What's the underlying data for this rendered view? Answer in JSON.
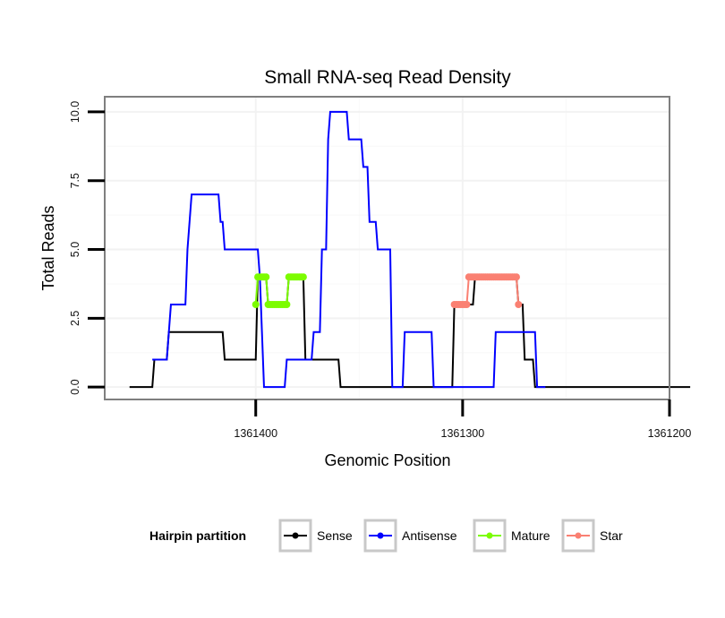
{
  "chart_data": {
    "type": "line",
    "title": "Small RNA-seq Read Density",
    "xlabel": "Genomic Position",
    "ylabel": "Total Reads",
    "x_reversed": true,
    "xlim": [
      1361473,
      1361200
    ],
    "ylim": [
      -0.45,
      10.55
    ],
    "xticks": [
      1361400,
      1361300,
      1361200
    ],
    "xtick_labels": [
      "1361400",
      "1361300",
      "1361200"
    ],
    "yticks": [
      0,
      2.5,
      5,
      7.5,
      10
    ],
    "ytick_labels": [
      "0.0",
      "2.5",
      "5.0",
      "7.5",
      "10.0"
    ],
    "grid": true,
    "legend": {
      "title": "Hairpin partition",
      "position": "bottom",
      "entries": [
        {
          "name": "Sense",
          "color": "#000000"
        },
        {
          "name": "Antisense",
          "color": "#0000ff"
        },
        {
          "name": "Mature",
          "color": "#7cfc00"
        },
        {
          "name": "Star",
          "color": "#fa8072"
        }
      ]
    },
    "series": [
      {
        "name": "Sense",
        "color": "#000000",
        "markers": false,
        "x": [
          1361461,
          1361450,
          1361449,
          1361443,
          1361442,
          1361426,
          1361425,
          1361416,
          1361415,
          1361400,
          1361399,
          1361395,
          1361394,
          1361390,
          1361389,
          1361385,
          1361384,
          1361377,
          1361376,
          1361374,
          1361373,
          1361360,
          1361359,
          1361305,
          1361304,
          1361303,
          1361302,
          1361295,
          1361294,
          1361274,
          1361273,
          1361271,
          1361270,
          1361266,
          1361265,
          1361190
        ],
        "y": [
          0,
          0,
          1,
          1,
          2,
          2,
          2,
          2,
          1,
          1,
          4,
          4,
          3,
          3,
          3,
          3,
          4,
          4,
          1,
          1,
          1,
          1,
          0,
          0,
          3,
          3,
          3,
          3,
          4,
          4,
          3,
          3,
          1,
          1,
          0,
          0
        ]
      },
      {
        "name": "Antisense",
        "color": "#0000ff",
        "markers": false,
        "x": [
          1361450,
          1361443,
          1361442,
          1361441,
          1361440,
          1361434,
          1361433,
          1361432,
          1361431,
          1361428,
          1361427,
          1361418,
          1361417,
          1361416,
          1361415,
          1361407,
          1361406,
          1361399,
          1361398,
          1361397,
          1361396,
          1361386,
          1361385,
          1361373,
          1361372,
          1361369,
          1361368,
          1361366,
          1361365,
          1361364,
          1361363,
          1361356,
          1361355,
          1361349,
          1361348,
          1361346,
          1361345,
          1361342,
          1361341,
          1361335,
          1361334,
          1361329,
          1361328,
          1361315,
          1361314,
          1361290,
          1361289,
          1361285,
          1361284,
          1361265,
          1361264,
          1361260
        ],
        "y": [
          1,
          1,
          2,
          3,
          3,
          3,
          5,
          6,
          7,
          7,
          7,
          7,
          6,
          6,
          5,
          5,
          5,
          5,
          4,
          2,
          0,
          0,
          1,
          1,
          2,
          2,
          5,
          5,
          9,
          10,
          10,
          10,
          9,
          9,
          8,
          8,
          6,
          6,
          5,
          5,
          0,
          0,
          2,
          2,
          0,
          0,
          0,
          0,
          2,
          2,
          0,
          0
        ]
      },
      {
        "name": "Mature",
        "color": "#7cfc00",
        "markers": true,
        "x": [
          1361400,
          1361399,
          1361398,
          1361397,
          1361396,
          1361395,
          1361394,
          1361393,
          1361392,
          1361391,
          1361390,
          1361389,
          1361388,
          1361387,
          1361386,
          1361385,
          1361384,
          1361383,
          1361382,
          1361381,
          1361380,
          1361379,
          1361378,
          1361377
        ],
        "y": [
          3,
          4,
          4,
          4,
          4,
          4,
          3,
          3,
          3,
          3,
          3,
          3,
          3,
          3,
          3,
          3,
          4,
          4,
          4,
          4,
          4,
          4,
          4,
          4
        ]
      },
      {
        "name": "Star",
        "color": "#fa8072",
        "markers": true,
        "x": [
          1361304,
          1361303,
          1361302,
          1361301,
          1361300,
          1361299,
          1361298,
          1361297,
          1361296,
          1361295,
          1361294,
          1361293,
          1361292,
          1361291,
          1361290,
          1361289,
          1361288,
          1361287,
          1361286,
          1361285,
          1361284,
          1361283,
          1361282,
          1361281,
          1361280,
          1361279,
          1361278,
          1361277,
          1361276,
          1361275,
          1361274,
          1361273
        ],
        "y": [
          3,
          3,
          3,
          3,
          3,
          3,
          3,
          4,
          4,
          4,
          4,
          4,
          4,
          4,
          4,
          4,
          4,
          4,
          4,
          4,
          4,
          4,
          4,
          4,
          4,
          4,
          4,
          4,
          4,
          4,
          4,
          3
        ]
      }
    ]
  }
}
